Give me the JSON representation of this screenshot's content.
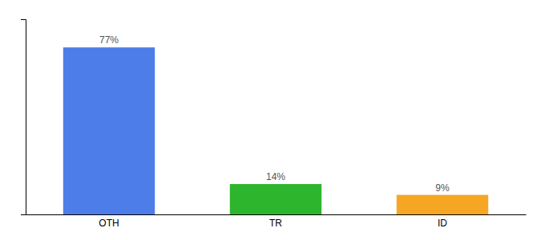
{
  "chart_data": {
    "type": "bar",
    "categories": [
      "OTH",
      "TR",
      "ID"
    ],
    "values": [
      77,
      14,
      9
    ],
    "colors": [
      "#4d7de8",
      "#2db52d",
      "#f5a623"
    ],
    "ylim": [
      0,
      90
    ],
    "yticks": [],
    "data_labels": true,
    "value_labels": [
      "77%",
      "14%",
      "9%"
    ],
    "tick_labels": "x"
  }
}
